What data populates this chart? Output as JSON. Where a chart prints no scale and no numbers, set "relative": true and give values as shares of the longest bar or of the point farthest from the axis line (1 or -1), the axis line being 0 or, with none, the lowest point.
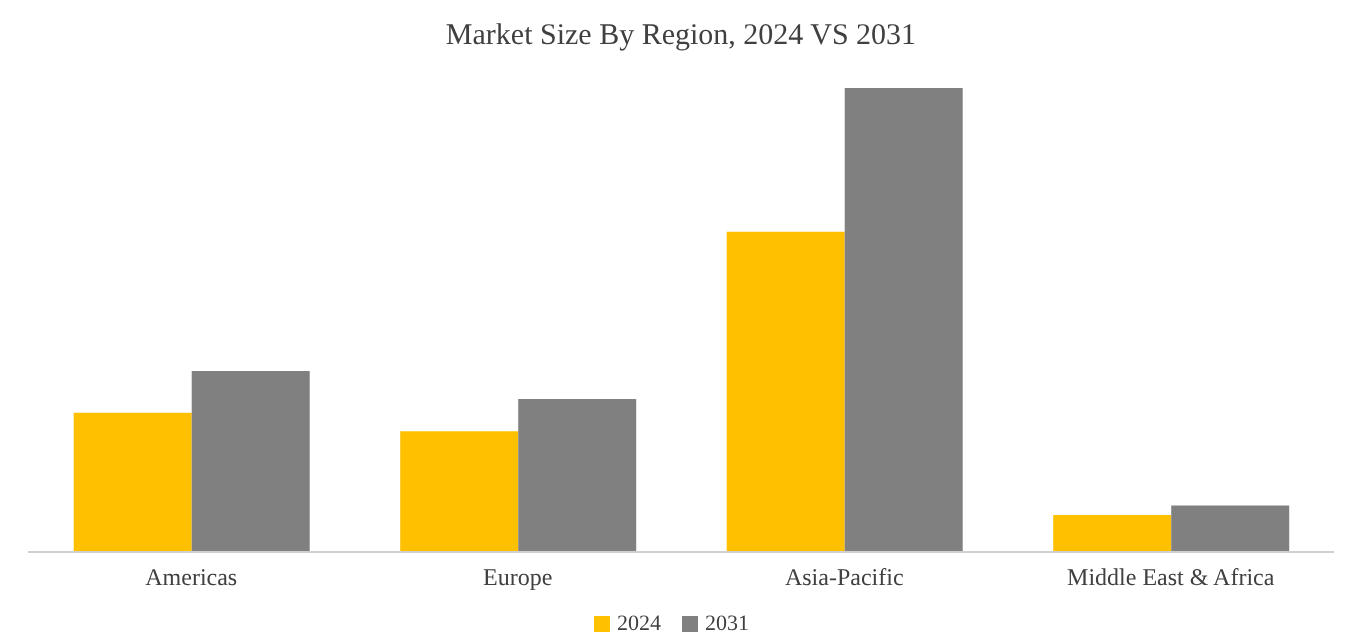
{
  "chart_data": {
    "type": "bar",
    "title": "Market Size By Region, 2024 VS 2031",
    "relative": true,
    "categories": [
      "Americas",
      "Europe",
      "Asia-Pacific",
      "Middle East & Africa"
    ],
    "series": [
      {
        "name": "2024",
        "color": "#ffc000",
        "values": [
          0.3,
          0.26,
          0.69,
          0.08
        ]
      },
      {
        "name": "2031",
        "color": "#808080",
        "values": [
          0.39,
          0.33,
          1,
          0.1
        ]
      }
    ],
    "legend": "bottom"
  }
}
